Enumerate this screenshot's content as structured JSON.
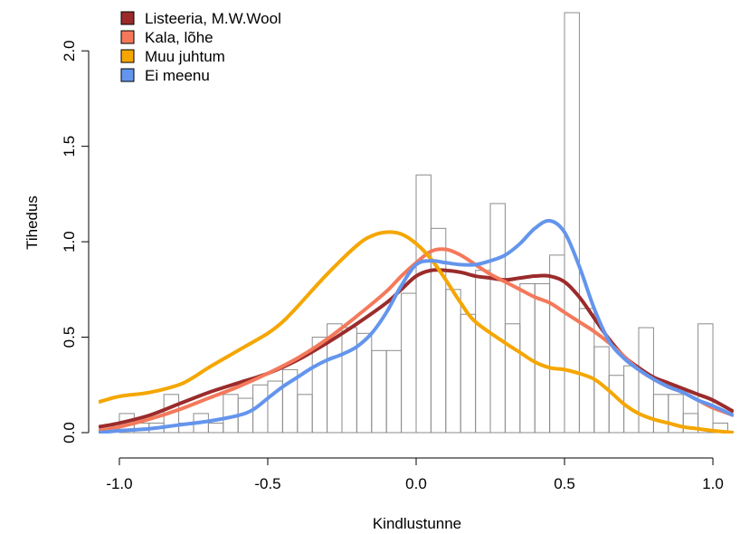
{
  "chart_data": {
    "type": "histogram-with-density",
    "xlabel": "Kindlustunne",
    "ylabel": "Tihedus",
    "xlim": [
      -1.07,
      1.07
    ],
    "ylim": [
      0,
      2.2
    ],
    "x_ticks": [
      {
        "value": -1.0,
        "label": "-1.0"
      },
      {
        "value": -0.5,
        "label": "-0.5"
      },
      {
        "value": 0.0,
        "label": "0.0"
      },
      {
        "value": 0.5,
        "label": "0.5"
      },
      {
        "value": 1.0,
        "label": "1.0"
      }
    ],
    "y_ticks": [
      {
        "value": 0.0,
        "label": "0.0"
      },
      {
        "value": 0.5,
        "label": "0.5"
      },
      {
        "value": 1.0,
        "label": "1.0"
      },
      {
        "value": 1.5,
        "label": "1.5"
      },
      {
        "value": 2.0,
        "label": "2.0"
      }
    ],
    "histogram": {
      "bin_width": 0.05,
      "bins": [
        {
          "x0": -1.0,
          "x1": -0.95,
          "y": 0.1
        },
        {
          "x0": -0.95,
          "x1": -0.9,
          "y": 0.05
        },
        {
          "x0": -0.9,
          "x1": -0.85,
          "y": 0.05
        },
        {
          "x0": -0.85,
          "x1": -0.8,
          "y": 0.2
        },
        {
          "x0": -0.8,
          "x1": -0.75,
          "y": 0.05
        },
        {
          "x0": -0.75,
          "x1": -0.7,
          "y": 0.1
        },
        {
          "x0": -0.7,
          "x1": -0.65,
          "y": 0.05
        },
        {
          "x0": -0.65,
          "x1": -0.6,
          "y": 0.2
        },
        {
          "x0": -0.6,
          "x1": -0.55,
          "y": 0.18
        },
        {
          "x0": -0.55,
          "x1": -0.5,
          "y": 0.25
        },
        {
          "x0": -0.5,
          "x1": -0.45,
          "y": 0.27
        },
        {
          "x0": -0.45,
          "x1": -0.4,
          "y": 0.33
        },
        {
          "x0": -0.4,
          "x1": -0.35,
          "y": 0.2
        },
        {
          "x0": -0.35,
          "x1": -0.3,
          "y": 0.5
        },
        {
          "x0": -0.3,
          "x1": -0.25,
          "y": 0.57
        },
        {
          "x0": -0.25,
          "x1": -0.2,
          "y": 0.55
        },
        {
          "x0": -0.2,
          "x1": -0.15,
          "y": 0.52
        },
        {
          "x0": -0.15,
          "x1": -0.1,
          "y": 0.43
        },
        {
          "x0": -0.1,
          "x1": -0.05,
          "y": 0.43
        },
        {
          "x0": -0.05,
          "x1": 0.0,
          "y": 0.73
        },
        {
          "x0": 0.0,
          "x1": 0.05,
          "y": 1.35
        },
        {
          "x0": 0.05,
          "x1": 0.1,
          "y": 1.07
        },
        {
          "x0": 0.1,
          "x1": 0.15,
          "y": 0.75
        },
        {
          "x0": 0.15,
          "x1": 0.2,
          "y": 0.62
        },
        {
          "x0": 0.2,
          "x1": 0.25,
          "y": 0.85
        },
        {
          "x0": 0.25,
          "x1": 0.3,
          "y": 1.2
        },
        {
          "x0": 0.3,
          "x1": 0.35,
          "y": 0.57
        },
        {
          "x0": 0.35,
          "x1": 0.4,
          "y": 0.78
        },
        {
          "x0": 0.4,
          "x1": 0.45,
          "y": 0.78
        },
        {
          "x0": 0.45,
          "x1": 0.5,
          "y": 0.93
        },
        {
          "x0": 0.5,
          "x1": 0.55,
          "y": 2.2
        },
        {
          "x0": 0.55,
          "x1": 0.6,
          "y": 0.65
        },
        {
          "x0": 0.6,
          "x1": 0.65,
          "y": 0.45
        },
        {
          "x0": 0.65,
          "x1": 0.7,
          "y": 0.3
        },
        {
          "x0": 0.7,
          "x1": 0.75,
          "y": 0.35
        },
        {
          "x0": 0.75,
          "x1": 0.8,
          "y": 0.55
        },
        {
          "x0": 0.8,
          "x1": 0.85,
          "y": 0.2
        },
        {
          "x0": 0.85,
          "x1": 0.9,
          "y": 0.2
        },
        {
          "x0": 0.9,
          "x1": 0.95,
          "y": 0.1
        },
        {
          "x0": 0.95,
          "x1": 1.0,
          "y": 0.57
        },
        {
          "x0": 1.0,
          "x1": 1.05,
          "y": 0.05
        }
      ]
    },
    "series": [
      {
        "name": "Listeeria, M.W.Wool",
        "color": "#9b2b2b",
        "points": [
          [
            -1.07,
            0.03
          ],
          [
            -1.0,
            0.05
          ],
          [
            -0.9,
            0.09
          ],
          [
            -0.8,
            0.15
          ],
          [
            -0.7,
            0.21
          ],
          [
            -0.6,
            0.26
          ],
          [
            -0.5,
            0.31
          ],
          [
            -0.4,
            0.38
          ],
          [
            -0.3,
            0.47
          ],
          [
            -0.2,
            0.57
          ],
          [
            -0.1,
            0.68
          ],
          [
            -0.05,
            0.75
          ],
          [
            0.0,
            0.82
          ],
          [
            0.05,
            0.85
          ],
          [
            0.1,
            0.85
          ],
          [
            0.15,
            0.84
          ],
          [
            0.2,
            0.82
          ],
          [
            0.25,
            0.81
          ],
          [
            0.3,
            0.8
          ],
          [
            0.35,
            0.81
          ],
          [
            0.4,
            0.82
          ],
          [
            0.45,
            0.82
          ],
          [
            0.5,
            0.79
          ],
          [
            0.55,
            0.71
          ],
          [
            0.6,
            0.6
          ],
          [
            0.65,
            0.49
          ],
          [
            0.7,
            0.4
          ],
          [
            0.75,
            0.34
          ],
          [
            0.8,
            0.29
          ],
          [
            0.85,
            0.26
          ],
          [
            0.9,
            0.23
          ],
          [
            0.95,
            0.2
          ],
          [
            1.0,
            0.17
          ],
          [
            1.07,
            0.11
          ]
        ]
      },
      {
        "name": "Kala, lõhe",
        "color": "#f4795b",
        "points": [
          [
            -1.07,
            0.01
          ],
          [
            -1.0,
            0.03
          ],
          [
            -0.9,
            0.07
          ],
          [
            -0.8,
            0.12
          ],
          [
            -0.7,
            0.18
          ],
          [
            -0.6,
            0.24
          ],
          [
            -0.5,
            0.31
          ],
          [
            -0.4,
            0.39
          ],
          [
            -0.3,
            0.49
          ],
          [
            -0.2,
            0.61
          ],
          [
            -0.1,
            0.74
          ],
          [
            -0.05,
            0.82
          ],
          [
            0.0,
            0.89
          ],
          [
            0.05,
            0.95
          ],
          [
            0.1,
            0.96
          ],
          [
            0.15,
            0.93
          ],
          [
            0.2,
            0.88
          ],
          [
            0.25,
            0.83
          ],
          [
            0.3,
            0.79
          ],
          [
            0.35,
            0.75
          ],
          [
            0.4,
            0.71
          ],
          [
            0.45,
            0.68
          ],
          [
            0.5,
            0.63
          ],
          [
            0.55,
            0.58
          ],
          [
            0.6,
            0.53
          ],
          [
            0.65,
            0.47
          ],
          [
            0.7,
            0.4
          ],
          [
            0.75,
            0.33
          ],
          [
            0.8,
            0.28
          ],
          [
            0.85,
            0.24
          ],
          [
            0.9,
            0.21
          ],
          [
            0.95,
            0.17
          ],
          [
            1.0,
            0.13
          ],
          [
            1.07,
            0.09
          ]
        ]
      },
      {
        "name": "Muu juhtum",
        "color": "#f5a600",
        "points": [
          [
            -1.07,
            0.16
          ],
          [
            -1.0,
            0.19
          ],
          [
            -0.9,
            0.21
          ],
          [
            -0.8,
            0.25
          ],
          [
            -0.75,
            0.29
          ],
          [
            -0.7,
            0.34
          ],
          [
            -0.6,
            0.43
          ],
          [
            -0.5,
            0.52
          ],
          [
            -0.45,
            0.58
          ],
          [
            -0.4,
            0.66
          ],
          [
            -0.3,
            0.83
          ],
          [
            -0.2,
            0.98
          ],
          [
            -0.15,
            1.03
          ],
          [
            -0.1,
            1.05
          ],
          [
            -0.05,
            1.04
          ],
          [
            0.0,
            0.99
          ],
          [
            0.05,
            0.91
          ],
          [
            0.1,
            0.8
          ],
          [
            0.15,
            0.68
          ],
          [
            0.2,
            0.58
          ],
          [
            0.3,
            0.47
          ],
          [
            0.35,
            0.42
          ],
          [
            0.4,
            0.37
          ],
          [
            0.45,
            0.34
          ],
          [
            0.5,
            0.33
          ],
          [
            0.55,
            0.31
          ],
          [
            0.6,
            0.28
          ],
          [
            0.65,
            0.22
          ],
          [
            0.7,
            0.15
          ],
          [
            0.75,
            0.1
          ],
          [
            0.8,
            0.07
          ],
          [
            0.85,
            0.05
          ],
          [
            0.9,
            0.03
          ],
          [
            0.95,
            0.02
          ],
          [
            1.0,
            0.01
          ],
          [
            1.07,
            0.0
          ]
        ]
      },
      {
        "name": "Ei meenu",
        "color": "#6495ed",
        "points": [
          [
            -1.07,
            0.0
          ],
          [
            -1.0,
            0.01
          ],
          [
            -0.9,
            0.02
          ],
          [
            -0.8,
            0.04
          ],
          [
            -0.7,
            0.06
          ],
          [
            -0.6,
            0.09
          ],
          [
            -0.55,
            0.12
          ],
          [
            -0.5,
            0.18
          ],
          [
            -0.45,
            0.24
          ],
          [
            -0.4,
            0.29
          ],
          [
            -0.35,
            0.34
          ],
          [
            -0.3,
            0.38
          ],
          [
            -0.25,
            0.41
          ],
          [
            -0.2,
            0.45
          ],
          [
            -0.15,
            0.52
          ],
          [
            -0.1,
            0.63
          ],
          [
            -0.05,
            0.77
          ],
          [
            0.0,
            0.88
          ],
          [
            0.05,
            0.9
          ],
          [
            0.1,
            0.89
          ],
          [
            0.15,
            0.88
          ],
          [
            0.2,
            0.88
          ],
          [
            0.25,
            0.9
          ],
          [
            0.3,
            0.93
          ],
          [
            0.35,
            0.99
          ],
          [
            0.4,
            1.07
          ],
          [
            0.45,
            1.11
          ],
          [
            0.5,
            1.05
          ],
          [
            0.55,
            0.87
          ],
          [
            0.6,
            0.65
          ],
          [
            0.65,
            0.48
          ],
          [
            0.7,
            0.39
          ],
          [
            0.75,
            0.33
          ],
          [
            0.8,
            0.28
          ],
          [
            0.85,
            0.24
          ],
          [
            0.9,
            0.21
          ],
          [
            0.95,
            0.17
          ],
          [
            1.0,
            0.14
          ],
          [
            1.07,
            0.09
          ]
        ]
      }
    ],
    "legend": {
      "placement": "top-left",
      "entries": [
        {
          "label": "Listeeria, M.W.Wool",
          "color": "#9b2b2b"
        },
        {
          "label": "Kala, lõhe",
          "color": "#f4795b"
        },
        {
          "label": "Muu juhtum",
          "color": "#f5a600"
        },
        {
          "label": "Ei meenu",
          "color": "#6495ed"
        }
      ]
    },
    "grid": false
  }
}
